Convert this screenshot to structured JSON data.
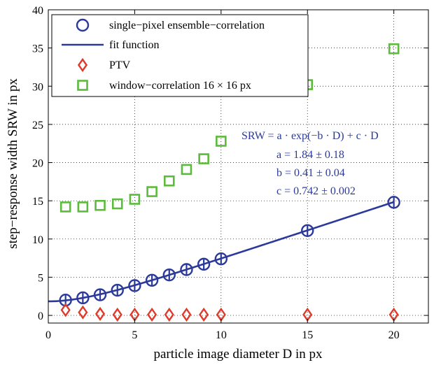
{
  "chart_data": {
    "type": "scatter",
    "xlabel": "particle image diameter D in px",
    "ylabel": "step−response width SRW in px",
    "xlim": [
      0,
      22
    ],
    "ylim": [
      -1,
      40
    ],
    "xticks": [
      0,
      5,
      10,
      15,
      20
    ],
    "yticks": [
      0,
      5,
      10,
      15,
      20,
      25,
      30,
      35,
      40
    ],
    "grid": true,
    "legend_position": "top-left",
    "series": [
      {
        "name": "single−pixel ensemble−correlation",
        "marker": "circle",
        "color": "#2b3a9a",
        "x": [
          1,
          2,
          3,
          4,
          5,
          6,
          7,
          8,
          9,
          10,
          15,
          20
        ],
        "y": [
          2.0,
          2.3,
          2.7,
          3.3,
          3.9,
          4.6,
          5.3,
          6.0,
          6.7,
          7.4,
          11.1,
          14.8
        ]
      },
      {
        "name": "fit function",
        "marker": "line",
        "color": "#2b3a9a",
        "formula": {
          "a": 1.84,
          "b": 0.41,
          "c": 0.742
        },
        "x_range": [
          0,
          20
        ]
      },
      {
        "name": "PTV",
        "marker": "diamond",
        "color": "#e03a2a",
        "x": [
          1,
          2,
          3,
          4,
          5,
          6,
          7,
          8,
          9,
          10,
          15,
          20
        ],
        "y": [
          0.7,
          0.4,
          0.2,
          0.1,
          0.1,
          0.1,
          0.1,
          0.1,
          0.1,
          0.1,
          0.1,
          0.1
        ]
      },
      {
        "name": "window−correlation 16 × 16 px",
        "marker": "square",
        "color": "#5cbb3c",
        "x": [
          1,
          2,
          3,
          4,
          5,
          6,
          7,
          8,
          9,
          10,
          15,
          20
        ],
        "y": [
          14.2,
          14.2,
          14.4,
          14.6,
          15.2,
          16.2,
          17.6,
          19.1,
          20.5,
          22.8,
          30.2,
          34.9
        ]
      }
    ],
    "annotations": [
      "SRW = a · exp(−b · D) + c · D",
      "a = 1.84 ± 0.18",
      "b = 0.41 ± 0.04",
      "c = 0.742 ± 0.002"
    ]
  }
}
